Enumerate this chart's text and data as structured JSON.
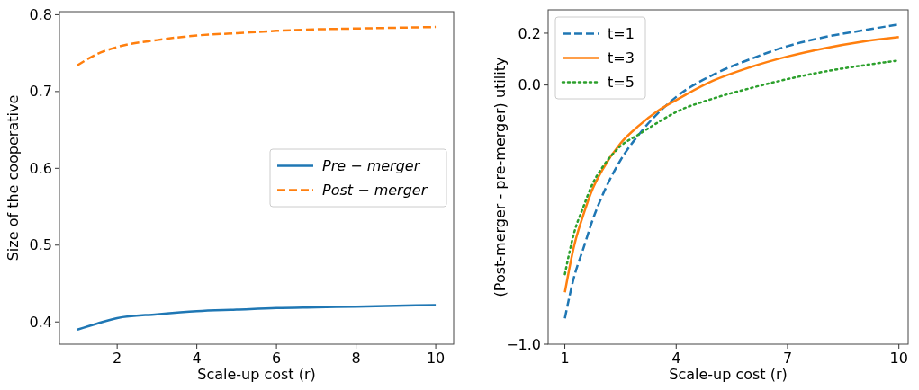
{
  "chart_data": [
    {
      "type": "line",
      "xlabel": "Scale-up cost (r)",
      "ylabel": "Size of the cooperative",
      "x": [
        1,
        1.5,
        2,
        3,
        4,
        5,
        6,
        7,
        8,
        9,
        10
      ],
      "xlim": [
        0.55,
        10.45
      ],
      "xticks": [
        2,
        4,
        6,
        8,
        10
      ],
      "ylim": [
        0.371,
        0.804
      ],
      "yticks": [
        0.4,
        0.5,
        0.6,
        0.7,
        0.8
      ],
      "legend": "right",
      "series": [
        {
          "name": "Pre − merger",
          "color": "#1f77b4",
          "line_style": "solid",
          "values": [
            0.39,
            0.398,
            0.405,
            0.41,
            0.414,
            0.416,
            0.418,
            0.419,
            0.42,
            0.421,
            0.422
          ]
        },
        {
          "name": "Post − merger",
          "color": "#ff7f0e",
          "line_style": "dashed",
          "values": [
            0.734,
            0.749,
            0.758,
            0.767,
            0.773,
            0.776,
            0.779,
            0.781,
            0.782,
            0.783,
            0.784
          ]
        }
      ]
    },
    {
      "type": "line",
      "xlabel": "Scale-up cost (r)",
      "ylabel": "(Post-merger - pre-merger) utility",
      "x": [
        1,
        1.25,
        1.5,
        1.75,
        2,
        2.5,
        3,
        3.5,
        4,
        5,
        6,
        7,
        8,
        9,
        10
      ],
      "xlim": [
        0.55,
        10.25
      ],
      "xticks": [
        1,
        4,
        7,
        10
      ],
      "ylim": [
        -1.0,
        0.29
      ],
      "yticks": [
        {
          "value": -1.0,
          "label": "−1.0"
        },
        {
          "value": 0.0,
          "label": "0.0"
        },
        {
          "value": 0.2,
          "label": "0.2"
        }
      ],
      "legend": "top left",
      "series": [
        {
          "name": "t=1",
          "color": "#1f77b4",
          "line_style": "dashed",
          "values": [
            -0.9,
            -0.74,
            -0.63,
            -0.52,
            -0.43,
            -0.29,
            -0.19,
            -0.11,
            -0.046,
            0.04,
            0.1,
            0.15,
            0.185,
            0.21,
            0.234
          ]
        },
        {
          "name": "t=3",
          "color": "#ff7f0e",
          "line_style": "solid",
          "values": [
            -0.8,
            -0.62,
            -0.5,
            -0.4,
            -0.33,
            -0.225,
            -0.156,
            -0.1,
            -0.058,
            0.017,
            0.069,
            0.11,
            0.142,
            0.167,
            0.185
          ]
        },
        {
          "name": "t=5",
          "color": "#2ca02c",
          "line_style": "dotted",
          "values": [
            -0.73,
            -0.57,
            -0.47,
            -0.38,
            -0.32,
            -0.236,
            -0.19,
            -0.145,
            -0.104,
            -0.052,
            -0.012,
            0.023,
            0.052,
            0.075,
            0.095
          ]
        }
      ]
    }
  ]
}
